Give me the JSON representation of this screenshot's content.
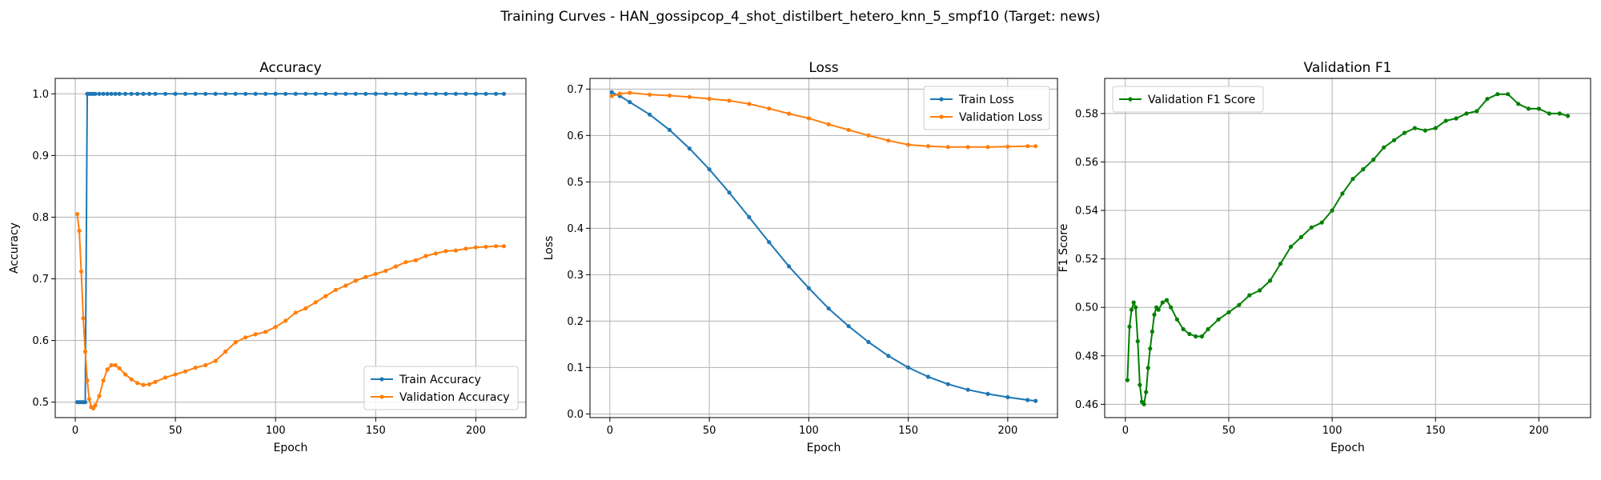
{
  "suptitle": "Training Curves - HAN_gossipcop_4_shot_distilbert_hetero_knn_5_smpf10 (Target: news)",
  "colors": {
    "train": "#1f77b4",
    "val": "#ff7f0e",
    "f1": "#008000",
    "grid": "#b0b0b0"
  },
  "chart_data": [
    {
      "type": "line",
      "title": "Accuracy",
      "xlabel": "Epoch",
      "ylabel": "Accuracy",
      "xlim": [
        -10,
        225
      ],
      "ylim": [
        0.475,
        1.025
      ],
      "xticks": [
        0,
        50,
        100,
        150,
        200
      ],
      "yticks": [
        0.5,
        0.6,
        0.7,
        0.8,
        0.9,
        1.0
      ],
      "ytick_labels": [
        "0.5",
        "0.6",
        "0.7",
        "0.8",
        "0.9",
        "1.0"
      ],
      "grid": true,
      "legend_position": "lower-right",
      "x": [
        1,
        2,
        3,
        4,
        5,
        6,
        7,
        8,
        9,
        10,
        12,
        14,
        16,
        18,
        20,
        22,
        25,
        28,
        31,
        34,
        37,
        40,
        45,
        50,
        55,
        60,
        65,
        70,
        75,
        80,
        85,
        90,
        95,
        100,
        105,
        110,
        115,
        120,
        125,
        130,
        135,
        140,
        145,
        150,
        155,
        160,
        165,
        170,
        175,
        180,
        185,
        190,
        195,
        200,
        205,
        210,
        214
      ],
      "series": [
        {
          "name": "Train Accuracy",
          "color_key": "train",
          "values": [
            0.5,
            0.5,
            0.5,
            0.5,
            0.5,
            1.0,
            1.0,
            1.0,
            1.0,
            1.0,
            1.0,
            1.0,
            1.0,
            1.0,
            1.0,
            1.0,
            1.0,
            1.0,
            1.0,
            1.0,
            1.0,
            1.0,
            1.0,
            1.0,
            1.0,
            1.0,
            1.0,
            1.0,
            1.0,
            1.0,
            1.0,
            1.0,
            1.0,
            1.0,
            1.0,
            1.0,
            1.0,
            1.0,
            1.0,
            1.0,
            1.0,
            1.0,
            1.0,
            1.0,
            1.0,
            1.0,
            1.0,
            1.0,
            1.0,
            1.0,
            1.0,
            1.0,
            1.0,
            1.0,
            1.0,
            1.0,
            1.0
          ]
        },
        {
          "name": "Validation Accuracy",
          "color_key": "val",
          "values": [
            0.805,
            0.778,
            0.712,
            0.636,
            0.582,
            0.535,
            0.505,
            0.492,
            0.49,
            0.495,
            0.51,
            0.535,
            0.553,
            0.56,
            0.56,
            0.555,
            0.545,
            0.537,
            0.531,
            0.528,
            0.529,
            0.533,
            0.54,
            0.545,
            0.55,
            0.556,
            0.56,
            0.567,
            0.582,
            0.597,
            0.605,
            0.61,
            0.614,
            0.622,
            0.632,
            0.645,
            0.652,
            0.662,
            0.672,
            0.682,
            0.689,
            0.697,
            0.703,
            0.708,
            0.713,
            0.72,
            0.727,
            0.73,
            0.737,
            0.741,
            0.745,
            0.746,
            0.749,
            0.751,
            0.752,
            0.753,
            0.753
          ]
        }
      ]
    },
    {
      "type": "line",
      "title": "Loss",
      "xlabel": "Epoch",
      "ylabel": "Loss",
      "xlim": [
        -10,
        225
      ],
      "ylim": [
        -0.008,
        0.723
      ],
      "xticks": [
        0,
        50,
        100,
        150,
        200
      ],
      "yticks": [
        0.0,
        0.1,
        0.2,
        0.3,
        0.4,
        0.5,
        0.6,
        0.7
      ],
      "ytick_labels": [
        "0.0",
        "0.1",
        "0.2",
        "0.3",
        "0.4",
        "0.5",
        "0.6",
        "0.7"
      ],
      "grid": true,
      "legend_position": "upper-right",
      "x": [
        1,
        5,
        10,
        20,
        30,
        40,
        50,
        60,
        70,
        80,
        90,
        100,
        110,
        120,
        130,
        140,
        150,
        160,
        170,
        180,
        190,
        200,
        210,
        214
      ],
      "series": [
        {
          "name": "Train Loss",
          "color_key": "train",
          "values": [
            0.693,
            0.685,
            0.672,
            0.645,
            0.612,
            0.572,
            0.527,
            0.477,
            0.424,
            0.37,
            0.318,
            0.271,
            0.227,
            0.189,
            0.155,
            0.125,
            0.1,
            0.08,
            0.064,
            0.052,
            0.043,
            0.036,
            0.03,
            0.028
          ]
        },
        {
          "name": "Validation Loss",
          "color_key": "val",
          "values": [
            0.685,
            0.69,
            0.692,
            0.688,
            0.686,
            0.683,
            0.679,
            0.675,
            0.668,
            0.658,
            0.647,
            0.637,
            0.624,
            0.612,
            0.6,
            0.589,
            0.58,
            0.577,
            0.575,
            0.575,
            0.575,
            0.576,
            0.577,
            0.577
          ]
        }
      ]
    },
    {
      "type": "line",
      "title": "Validation F1",
      "xlabel": "Epoch",
      "ylabel": "F1 Score",
      "xlim": [
        -10,
        225
      ],
      "ylim": [
        0.4545,
        0.5945
      ],
      "xticks": [
        0,
        50,
        100,
        150,
        200
      ],
      "yticks": [
        0.46,
        0.48,
        0.5,
        0.52,
        0.54,
        0.56,
        0.58
      ],
      "ytick_labels": [
        "0.46",
        "0.48",
        "0.50",
        "0.52",
        "0.54",
        "0.56",
        "0.58"
      ],
      "grid": true,
      "legend_position": "upper-left",
      "x": [
        1,
        2,
        3,
        4,
        5,
        6,
        7,
        8,
        9,
        10,
        11,
        12,
        13,
        14,
        15,
        16,
        18,
        20,
        22,
        25,
        28,
        31,
        34,
        37,
        40,
        45,
        50,
        55,
        60,
        65,
        70,
        75,
        80,
        85,
        90,
        95,
        100,
        105,
        110,
        115,
        120,
        125,
        130,
        135,
        140,
        145,
        150,
        155,
        160,
        165,
        170,
        175,
        180,
        185,
        190,
        195,
        200,
        205,
        210,
        214
      ],
      "series": [
        {
          "name": "Validation F1 Score",
          "color_key": "f1",
          "values": [
            0.47,
            0.492,
            0.499,
            0.502,
            0.5,
            0.486,
            0.468,
            0.461,
            0.46,
            0.465,
            0.475,
            0.483,
            0.49,
            0.497,
            0.5,
            0.499,
            0.502,
            0.503,
            0.5,
            0.495,
            0.491,
            0.489,
            0.488,
            0.488,
            0.491,
            0.495,
            0.498,
            0.501,
            0.505,
            0.507,
            0.511,
            0.518,
            0.525,
            0.529,
            0.533,
            0.535,
            0.54,
            0.547,
            0.553,
            0.557,
            0.561,
            0.566,
            0.569,
            0.572,
            0.574,
            0.573,
            0.574,
            0.577,
            0.578,
            0.58,
            0.581,
            0.586,
            0.588,
            0.588,
            0.584,
            0.582,
            0.582,
            0.58,
            0.58,
            0.579
          ]
        }
      ]
    }
  ]
}
